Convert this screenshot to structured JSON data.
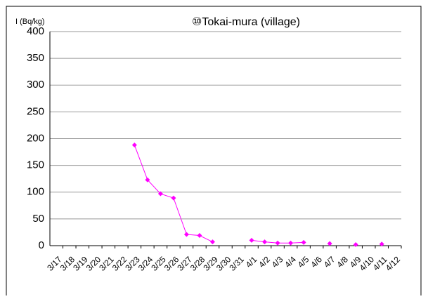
{
  "chart_data": {
    "type": "line",
    "title": "⑩Tokai-mura (village)",
    "y_label": "I (Bq/kg)",
    "categories": [
      "3/17",
      "3/18",
      "3/19",
      "3/20",
      "3/21",
      "3/22",
      "3/23",
      "3/24",
      "3/25",
      "3/26",
      "3/27",
      "3/28",
      "3/29",
      "3/30",
      "3/31",
      "4/1",
      "4/2",
      "4/3",
      "4/4",
      "4/5",
      "4/6",
      "4/7",
      "4/8",
      "4/9",
      "4/10",
      "4/11",
      "4/12"
    ],
    "series": [
      {
        "name": "I",
        "color": "#ff00ff",
        "values": [
          null,
          null,
          null,
          null,
          null,
          null,
          188,
          123,
          97,
          89,
          21,
          19,
          7,
          null,
          null,
          10,
          7,
          5,
          5,
          6,
          null,
          4,
          null,
          2,
          null,
          3,
          null
        ]
      }
    ],
    "ylim": [
      0,
      400
    ],
    "yticks": [
      0,
      50,
      100,
      150,
      200,
      250,
      300,
      350,
      400
    ],
    "grid": true
  }
}
